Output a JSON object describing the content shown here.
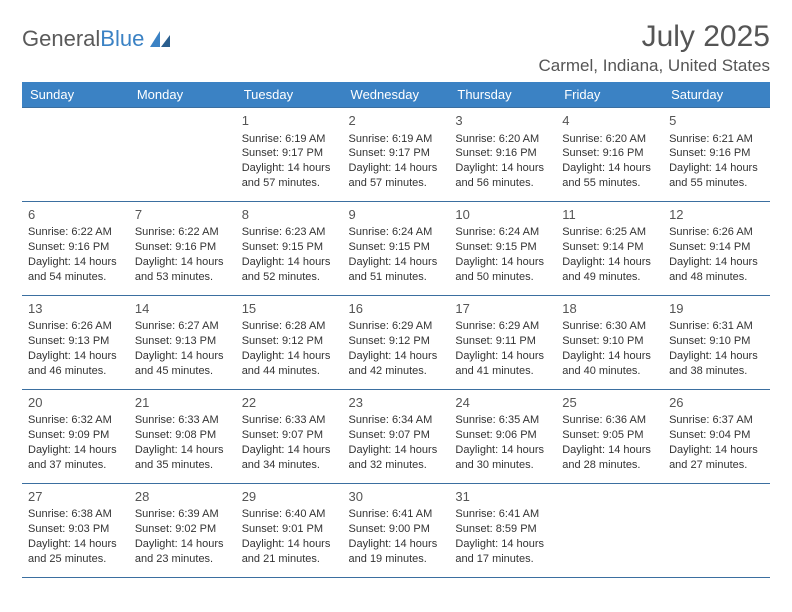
{
  "logo": {
    "text1": "General",
    "text2": "Blue"
  },
  "title": "July 2025",
  "location": "Carmel, Indiana, United States",
  "colors": {
    "header_bg": "#3b82c4",
    "header_fg": "#ffffff",
    "border": "#3b6fa0",
    "text": "#333333",
    "title": "#555555"
  },
  "daysOfWeek": [
    "Sunday",
    "Monday",
    "Tuesday",
    "Wednesday",
    "Thursday",
    "Friday",
    "Saturday"
  ],
  "weeks": [
    [
      null,
      null,
      {
        "n": "1",
        "sr": "Sunrise: 6:19 AM",
        "ss": "Sunset: 9:17 PM",
        "dl": "Daylight: 14 hours and 57 minutes."
      },
      {
        "n": "2",
        "sr": "Sunrise: 6:19 AM",
        "ss": "Sunset: 9:17 PM",
        "dl": "Daylight: 14 hours and 57 minutes."
      },
      {
        "n": "3",
        "sr": "Sunrise: 6:20 AM",
        "ss": "Sunset: 9:16 PM",
        "dl": "Daylight: 14 hours and 56 minutes."
      },
      {
        "n": "4",
        "sr": "Sunrise: 6:20 AM",
        "ss": "Sunset: 9:16 PM",
        "dl": "Daylight: 14 hours and 55 minutes."
      },
      {
        "n": "5",
        "sr": "Sunrise: 6:21 AM",
        "ss": "Sunset: 9:16 PM",
        "dl": "Daylight: 14 hours and 55 minutes."
      }
    ],
    [
      {
        "n": "6",
        "sr": "Sunrise: 6:22 AM",
        "ss": "Sunset: 9:16 PM",
        "dl": "Daylight: 14 hours and 54 minutes."
      },
      {
        "n": "7",
        "sr": "Sunrise: 6:22 AM",
        "ss": "Sunset: 9:16 PM",
        "dl": "Daylight: 14 hours and 53 minutes."
      },
      {
        "n": "8",
        "sr": "Sunrise: 6:23 AM",
        "ss": "Sunset: 9:15 PM",
        "dl": "Daylight: 14 hours and 52 minutes."
      },
      {
        "n": "9",
        "sr": "Sunrise: 6:24 AM",
        "ss": "Sunset: 9:15 PM",
        "dl": "Daylight: 14 hours and 51 minutes."
      },
      {
        "n": "10",
        "sr": "Sunrise: 6:24 AM",
        "ss": "Sunset: 9:15 PM",
        "dl": "Daylight: 14 hours and 50 minutes."
      },
      {
        "n": "11",
        "sr": "Sunrise: 6:25 AM",
        "ss": "Sunset: 9:14 PM",
        "dl": "Daylight: 14 hours and 49 minutes."
      },
      {
        "n": "12",
        "sr": "Sunrise: 6:26 AM",
        "ss": "Sunset: 9:14 PM",
        "dl": "Daylight: 14 hours and 48 minutes."
      }
    ],
    [
      {
        "n": "13",
        "sr": "Sunrise: 6:26 AM",
        "ss": "Sunset: 9:13 PM",
        "dl": "Daylight: 14 hours and 46 minutes."
      },
      {
        "n": "14",
        "sr": "Sunrise: 6:27 AM",
        "ss": "Sunset: 9:13 PM",
        "dl": "Daylight: 14 hours and 45 minutes."
      },
      {
        "n": "15",
        "sr": "Sunrise: 6:28 AM",
        "ss": "Sunset: 9:12 PM",
        "dl": "Daylight: 14 hours and 44 minutes."
      },
      {
        "n": "16",
        "sr": "Sunrise: 6:29 AM",
        "ss": "Sunset: 9:12 PM",
        "dl": "Daylight: 14 hours and 42 minutes."
      },
      {
        "n": "17",
        "sr": "Sunrise: 6:29 AM",
        "ss": "Sunset: 9:11 PM",
        "dl": "Daylight: 14 hours and 41 minutes."
      },
      {
        "n": "18",
        "sr": "Sunrise: 6:30 AM",
        "ss": "Sunset: 9:10 PM",
        "dl": "Daylight: 14 hours and 40 minutes."
      },
      {
        "n": "19",
        "sr": "Sunrise: 6:31 AM",
        "ss": "Sunset: 9:10 PM",
        "dl": "Daylight: 14 hours and 38 minutes."
      }
    ],
    [
      {
        "n": "20",
        "sr": "Sunrise: 6:32 AM",
        "ss": "Sunset: 9:09 PM",
        "dl": "Daylight: 14 hours and 37 minutes."
      },
      {
        "n": "21",
        "sr": "Sunrise: 6:33 AM",
        "ss": "Sunset: 9:08 PM",
        "dl": "Daylight: 14 hours and 35 minutes."
      },
      {
        "n": "22",
        "sr": "Sunrise: 6:33 AM",
        "ss": "Sunset: 9:07 PM",
        "dl": "Daylight: 14 hours and 34 minutes."
      },
      {
        "n": "23",
        "sr": "Sunrise: 6:34 AM",
        "ss": "Sunset: 9:07 PM",
        "dl": "Daylight: 14 hours and 32 minutes."
      },
      {
        "n": "24",
        "sr": "Sunrise: 6:35 AM",
        "ss": "Sunset: 9:06 PM",
        "dl": "Daylight: 14 hours and 30 minutes."
      },
      {
        "n": "25",
        "sr": "Sunrise: 6:36 AM",
        "ss": "Sunset: 9:05 PM",
        "dl": "Daylight: 14 hours and 28 minutes."
      },
      {
        "n": "26",
        "sr": "Sunrise: 6:37 AM",
        "ss": "Sunset: 9:04 PM",
        "dl": "Daylight: 14 hours and 27 minutes."
      }
    ],
    [
      {
        "n": "27",
        "sr": "Sunrise: 6:38 AM",
        "ss": "Sunset: 9:03 PM",
        "dl": "Daylight: 14 hours and 25 minutes."
      },
      {
        "n": "28",
        "sr": "Sunrise: 6:39 AM",
        "ss": "Sunset: 9:02 PM",
        "dl": "Daylight: 14 hours and 23 minutes."
      },
      {
        "n": "29",
        "sr": "Sunrise: 6:40 AM",
        "ss": "Sunset: 9:01 PM",
        "dl": "Daylight: 14 hours and 21 minutes."
      },
      {
        "n": "30",
        "sr": "Sunrise: 6:41 AM",
        "ss": "Sunset: 9:00 PM",
        "dl": "Daylight: 14 hours and 19 minutes."
      },
      {
        "n": "31",
        "sr": "Sunrise: 6:41 AM",
        "ss": "Sunset: 8:59 PM",
        "dl": "Daylight: 14 hours and 17 minutes."
      },
      null,
      null
    ]
  ]
}
